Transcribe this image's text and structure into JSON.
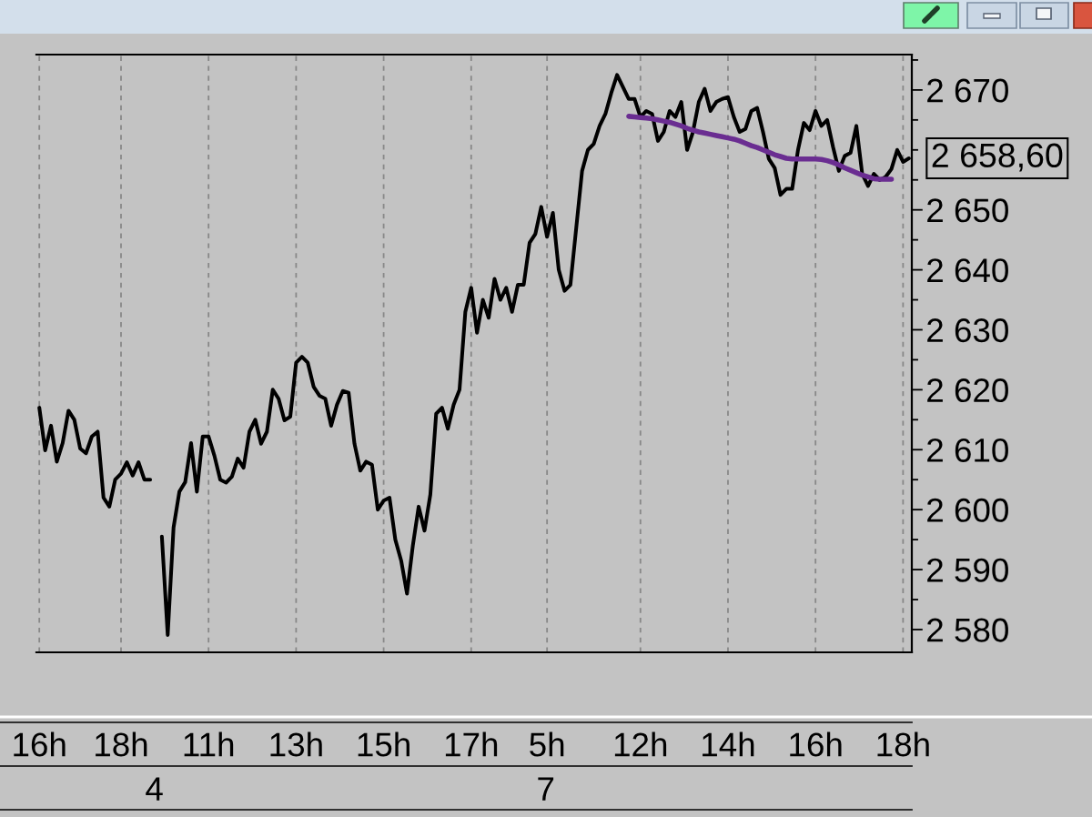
{
  "chart_data": {
    "type": "line",
    "categories": [
      "16h",
      null,
      null,
      null,
      null,
      null,
      null,
      null,
      null,
      null,
      null,
      null,
      null,
      null,
      "18h",
      null,
      null,
      null,
      null,
      null,
      null,
      null,
      null,
      null,
      null,
      null,
      null,
      null,
      null,
      "11h",
      null,
      null,
      null,
      null,
      null,
      null,
      null,
      null,
      null,
      null,
      null,
      null,
      null,
      null,
      "13h",
      null,
      null,
      null,
      null,
      null,
      null,
      null,
      null,
      null,
      null,
      null,
      null,
      null,
      null,
      "15h",
      null,
      null,
      null,
      null,
      null,
      null,
      null,
      null,
      null,
      null,
      null,
      null,
      null,
      null,
      "17h",
      null,
      null,
      null,
      null,
      null,
      null,
      null,
      null,
      null,
      null,
      null,
      null,
      "5h",
      null,
      null,
      null,
      null,
      null,
      null,
      null,
      null,
      null,
      null,
      null,
      null,
      null,
      null,
      null,
      "12h",
      null,
      null,
      null,
      null,
      null,
      null,
      null,
      null,
      null,
      null,
      null,
      null,
      null,
      null,
      "14h",
      null,
      null,
      null,
      null,
      null,
      null,
      null,
      null,
      null,
      null,
      null,
      null,
      null,
      null,
      "16h",
      null,
      null,
      null,
      null,
      null,
      null,
      null,
      null,
      null,
      null,
      null,
      null,
      null,
      null,
      "18h",
      null
    ],
    "series": [
      {
        "color": "#000000",
        "values": [
          2617.0,
          2609.9,
          2614.0,
          2608.0,
          2611.1,
          2616.5,
          2615.0,
          2610.2,
          2609.4,
          2612.2,
          2613.0,
          2602.0,
          2600.5,
          2605.0,
          2606.0,
          2607.9,
          2605.7,
          2607.9,
          2605.0,
          2605.0,
          null,
          2595.5,
          2579.1,
          2597.0,
          2603.0,
          2604.6,
          2611.1,
          2603.0,
          2612.2,
          2612.2,
          2609.0,
          2605.0,
          2604.5,
          2605.5,
          2608.5,
          2607.0,
          2613.0,
          2615.0,
          2611.0,
          2613.0,
          2620.0,
          2618.5,
          2614.9,
          2615.5,
          2624.5,
          2625.5,
          2624.5,
          2620.5,
          2619.0,
          2618.5,
          2614.0,
          2617.5,
          2619.8,
          2619.5,
          2611.0,
          2606.5,
          2608.0,
          2607.5,
          2600.0,
          2601.5,
          2602.0,
          2595.0,
          2591.5,
          2586.0,
          2594.0,
          2600.5,
          2596.5,
          2602.5,
          2616.0,
          2617.0,
          2613.5,
          2617.5,
          2620.0,
          2633.0,
          2637.0,
          2629.5,
          2635.0,
          2632.0,
          2638.5,
          2635.0,
          2637.0,
          2633.0,
          2637.5,
          2637.5,
          2644.5,
          2646.0,
          2650.5,
          2645.5,
          2649.5,
          2640.0,
          2636.5,
          2637.5,
          2647.0,
          2656.5,
          2660.0,
          2661.0,
          2664.0,
          2666.0,
          2669.5,
          2672.5,
          2670.5,
          2668.5,
          2668.5,
          2665.5,
          2666.5,
          2666.0,
          2661.5,
          2663.0,
          2666.5,
          2665.5,
          2668.0,
          2660.0,
          2663.0,
          2668.0,
          2670.2,
          2666.5,
          2668.0,
          2668.5,
          2668.8,
          2665.5,
          2663.0,
          2663.5,
          2666.5,
          2667.0,
          2663.0,
          2658.5,
          2657.0,
          2652.5,
          2653.5,
          2653.5,
          2660.0,
          2664.5,
          2663.3,
          2666.5,
          2664.0,
          2665.0,
          2660.5,
          2656.5,
          2659.0,
          2659.5,
          2664.0,
          2656.0,
          2654.0,
          2656.0,
          2655.0,
          2655.5,
          2656.8,
          2660.0,
          2658.0,
          2658.6
        ]
      },
      {
        "color": "#6a2d91",
        "values": [
          null,
          null,
          null,
          null,
          null,
          null,
          null,
          null,
          null,
          null,
          null,
          null,
          null,
          null,
          null,
          null,
          null,
          null,
          null,
          null,
          null,
          null,
          null,
          null,
          null,
          null,
          null,
          null,
          null,
          null,
          null,
          null,
          null,
          null,
          null,
          null,
          null,
          null,
          null,
          null,
          null,
          null,
          null,
          null,
          null,
          null,
          null,
          null,
          null,
          null,
          null,
          null,
          null,
          null,
          null,
          null,
          null,
          null,
          null,
          null,
          null,
          null,
          null,
          null,
          null,
          null,
          null,
          null,
          null,
          null,
          null,
          null,
          null,
          null,
          null,
          null,
          null,
          null,
          null,
          null,
          null,
          null,
          null,
          null,
          null,
          null,
          null,
          null,
          null,
          null,
          null,
          null,
          null,
          null,
          null,
          null,
          null,
          null,
          null,
          null,
          null,
          2665.6,
          2665.5,
          2665.4,
          2665.3,
          2665.2,
          2665.0,
          2664.8,
          2664.6,
          2664.3,
          2664.0,
          2663.6,
          2663.3,
          2663.0,
          2662.8,
          2662.6,
          2662.4,
          2662.2,
          2662.0,
          2661.8,
          2661.5,
          2661.1,
          2660.7,
          2660.4,
          2660.0,
          2659.6,
          2659.2,
          2658.9,
          2658.6,
          2658.5,
          2658.5,
          2658.5,
          2658.5,
          2658.5,
          2658.4,
          2658.2,
          2657.9,
          2657.5,
          2657.0,
          2656.6,
          2656.2,
          2655.8,
          2655.5,
          2655.2,
          2655.1,
          2655.1,
          2655.1,
          null,
          null,
          null
        ]
      }
    ],
    "x2lim": [
      3.096,
      9.806
    ],
    "x2ticks": [
      4,
      7
    ],
    "ylim": [
      2576.2,
      2675.9
    ],
    "yticks": [
      {
        "value": 2580,
        "label": "2 580"
      },
      {
        "value": 2585,
        "label": null
      },
      {
        "value": 2590,
        "label": "2 590"
      },
      {
        "value": 2595,
        "label": null
      },
      {
        "value": 2600,
        "label": "2 600"
      },
      {
        "value": 2605,
        "label": null
      },
      {
        "value": 2610,
        "label": "2 610"
      },
      {
        "value": 2615,
        "label": null
      },
      {
        "value": 2620,
        "label": "2 620"
      },
      {
        "value": 2625,
        "label": null
      },
      {
        "value": 2630,
        "label": "2 630"
      },
      {
        "value": 2635,
        "label": null
      },
      {
        "value": 2640,
        "label": "2 640"
      },
      {
        "value": 2645,
        "label": null
      },
      {
        "value": 2650,
        "label": "2 650"
      },
      {
        "value": 2655,
        "label": null
      },
      {
        "value": 2660,
        "label": null
      },
      {
        "value": 2665,
        "label": null
      },
      {
        "value": 2670,
        "label": "2 670"
      },
      {
        "value": 2675,
        "label": null
      }
    ],
    "grid": "x",
    "marker": "none",
    "line_style": "solid",
    "annotations": [
      "2 658,60"
    ]
  }
}
